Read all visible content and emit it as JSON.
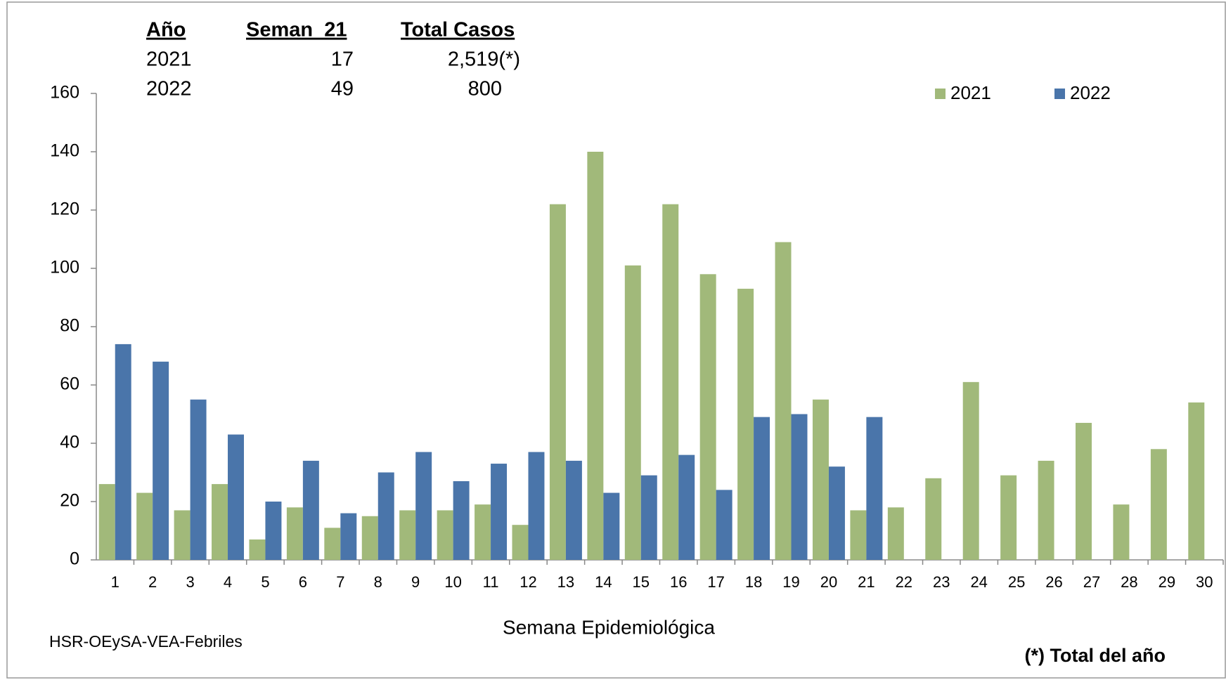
{
  "chart_data": {
    "type": "bar",
    "categories": [
      "1",
      "2",
      "3",
      "4",
      "5",
      "6",
      "7",
      "8",
      "9",
      "10",
      "11",
      "12",
      "13",
      "14",
      "15",
      "16",
      "17",
      "18",
      "19",
      "20",
      "21",
      "22",
      "23",
      "24",
      "25",
      "26",
      "27",
      "28",
      "29",
      "30"
    ],
    "series": [
      {
        "name": "2021",
        "color": "#a1b97a",
        "values": [
          26,
          23,
          17,
          26,
          7,
          18,
          11,
          15,
          17,
          17,
          19,
          12,
          122,
          140,
          101,
          122,
          98,
          93,
          109,
          55,
          17,
          18,
          28,
          61,
          29,
          34,
          47,
          19,
          38,
          54
        ]
      },
      {
        "name": "2022",
        "color": "#4a75aa",
        "values": [
          74,
          68,
          55,
          43,
          20,
          34,
          16,
          30,
          37,
          27,
          33,
          37,
          34,
          23,
          29,
          36,
          24,
          49,
          50,
          32,
          49,
          null,
          null,
          null,
          null,
          null,
          null,
          null,
          null,
          null
        ]
      }
    ],
    "ylim": [
      0,
      160
    ],
    "yticks": [
      0,
      20,
      40,
      60,
      80,
      100,
      120,
      140,
      160
    ],
    "x_label": "Semana Epidemiológica",
    "legend_position": "top-right",
    "table": {
      "header": [
        "Año",
        "Seman  21",
        "Total Casos"
      ],
      "rows": [
        [
          "2021",
          "17",
          "2,519(*)"
        ],
        [
          "2022",
          "49",
          "800"
        ]
      ]
    },
    "source": "HSR-OEySA-VEA-Febriles",
    "footnote": "(*) Total del año"
  }
}
